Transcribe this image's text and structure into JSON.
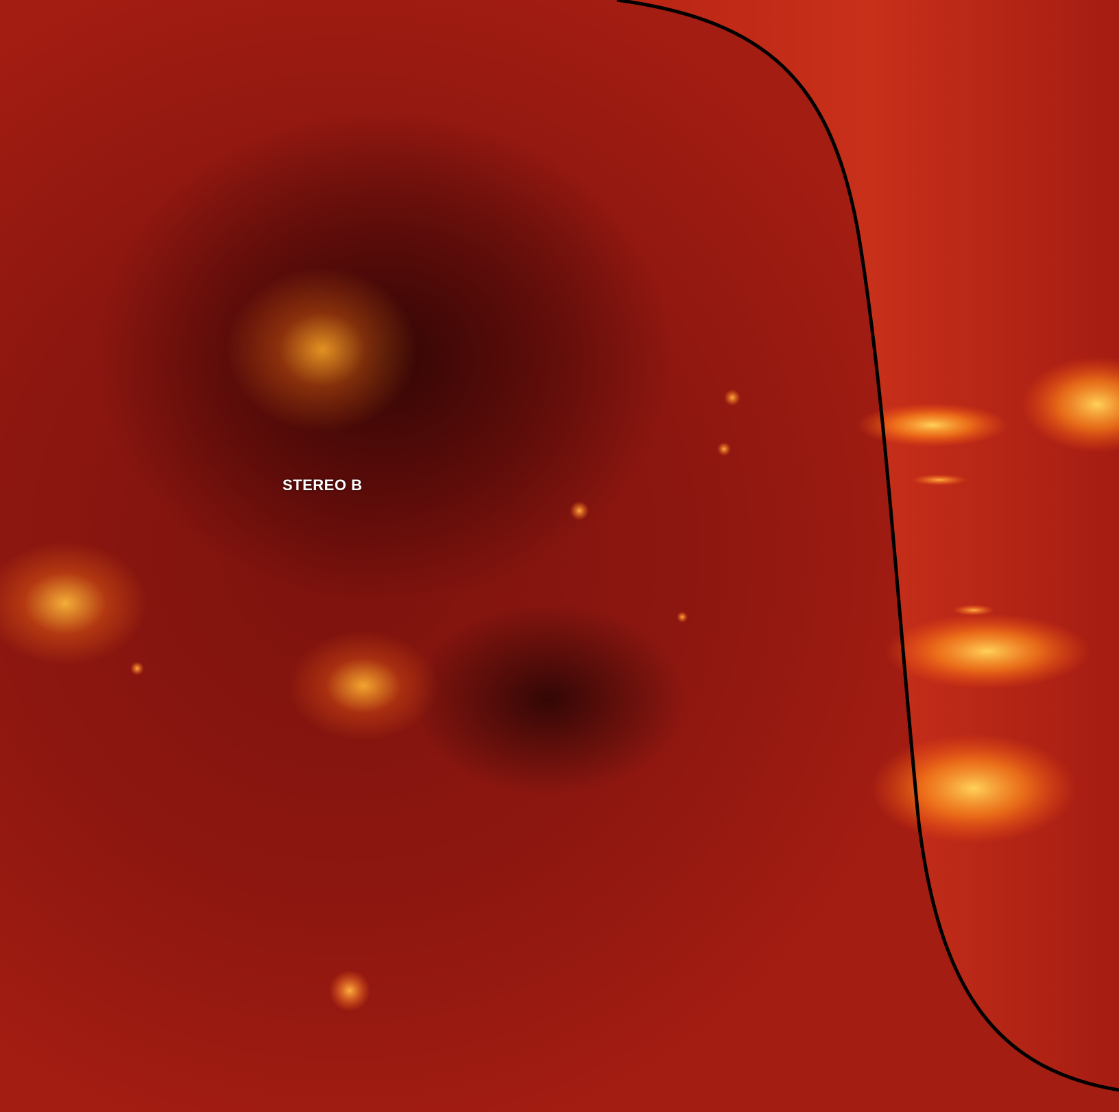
{
  "image": {
    "label": "STEREO B",
    "colors": {
      "disk": "#8e1710",
      "limb_glow": "#ff9a1a",
      "limb_edge": "#000000",
      "label_text": "#ffffff"
    }
  }
}
